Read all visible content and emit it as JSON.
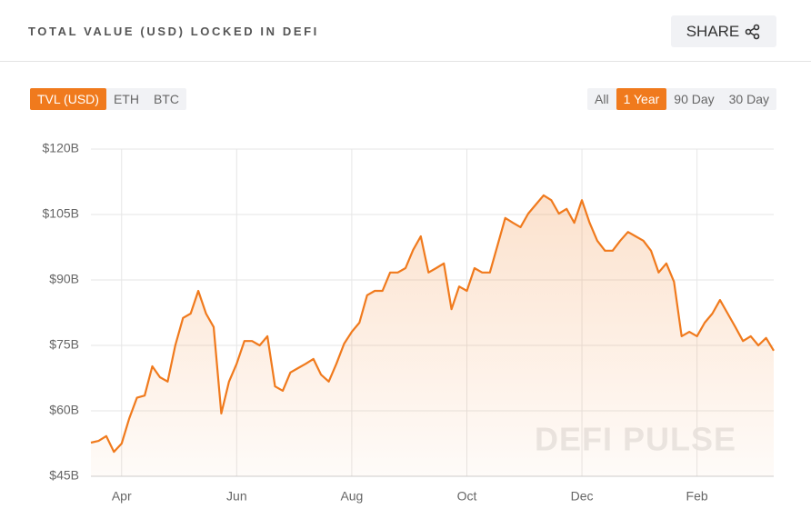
{
  "header": {
    "title": "TOTAL VALUE (USD) LOCKED IN DEFI",
    "share": "SHARE"
  },
  "tabs": {
    "units": [
      "TVL (USD)",
      "ETH",
      "BTC"
    ],
    "ranges": [
      "All",
      "1 Year",
      "90 Day",
      "30 Day"
    ]
  },
  "watermark": "DEFI PULSE",
  "chart_data": {
    "type": "line",
    "grid": true,
    "categories": [
      null,
      null,
      null,
      null,
      "Apr",
      null,
      null,
      null,
      null,
      null,
      null,
      null,
      null,
      null,
      null,
      null,
      null,
      null,
      null,
      "Jun",
      null,
      null,
      null,
      null,
      null,
      null,
      null,
      null,
      null,
      null,
      null,
      null,
      null,
      null,
      "Aug",
      null,
      null,
      null,
      null,
      null,
      null,
      null,
      null,
      null,
      null,
      null,
      null,
      null,
      null,
      "Oct",
      null,
      null,
      null,
      null,
      null,
      null,
      null,
      null,
      null,
      null,
      null,
      null,
      null,
      null,
      "Dec",
      null,
      null,
      null,
      null,
      null,
      null,
      null,
      null,
      null,
      null,
      null,
      null,
      null,
      null,
      "Feb",
      null,
      null,
      null,
      null,
      null,
      null,
      null,
      null,
      null,
      null
    ],
    "series": [
      {
        "name": "TVL (USD)",
        "color": "#f07a1d",
        "values": [
          52.7,
          53.1,
          54.2,
          50.6,
          52.5,
          58.3,
          63,
          63.5,
          70.2,
          67.7,
          66.7,
          75,
          81.3,
          82.3,
          87.5,
          82.3,
          79.2,
          59.4,
          66.7,
          70.8,
          76,
          76,
          75,
          77.1,
          65.6,
          64.6,
          68.8,
          69.8,
          70.8,
          71.9,
          68.3,
          66.7,
          70.8,
          75.4,
          78.1,
          80.2,
          86.5,
          87.5,
          87.5,
          91.7,
          91.7,
          92.7,
          96.9,
          100,
          91.7,
          92.7,
          93.8,
          83.3,
          88.5,
          87.5,
          92.7,
          91.7,
          91.7,
          97.9,
          104.2,
          103.1,
          102.1,
          105.2,
          107.3,
          109.4,
          108.3,
          105.2,
          106.3,
          103.1,
          108.3,
          103.1,
          99,
          96.7,
          96.7,
          99,
          101,
          100,
          99,
          96.7,
          91.7,
          93.8,
          89.6,
          77.1,
          78.1,
          77.1,
          80.2,
          82.3,
          85.4,
          82.3,
          79.2,
          76,
          77.1,
          75,
          76.7,
          73.8
        ]
      }
    ],
    "ylim": [
      45,
      120
    ],
    "yticks": [
      {
        "value": 45,
        "label": "$45B"
      },
      {
        "value": 60,
        "label": "$60B"
      },
      {
        "value": 75,
        "label": "$75B"
      },
      {
        "value": 90,
        "label": "$90B"
      },
      {
        "value": 105,
        "label": "$105B"
      },
      {
        "value": 120,
        "label": "$120B"
      }
    ]
  }
}
